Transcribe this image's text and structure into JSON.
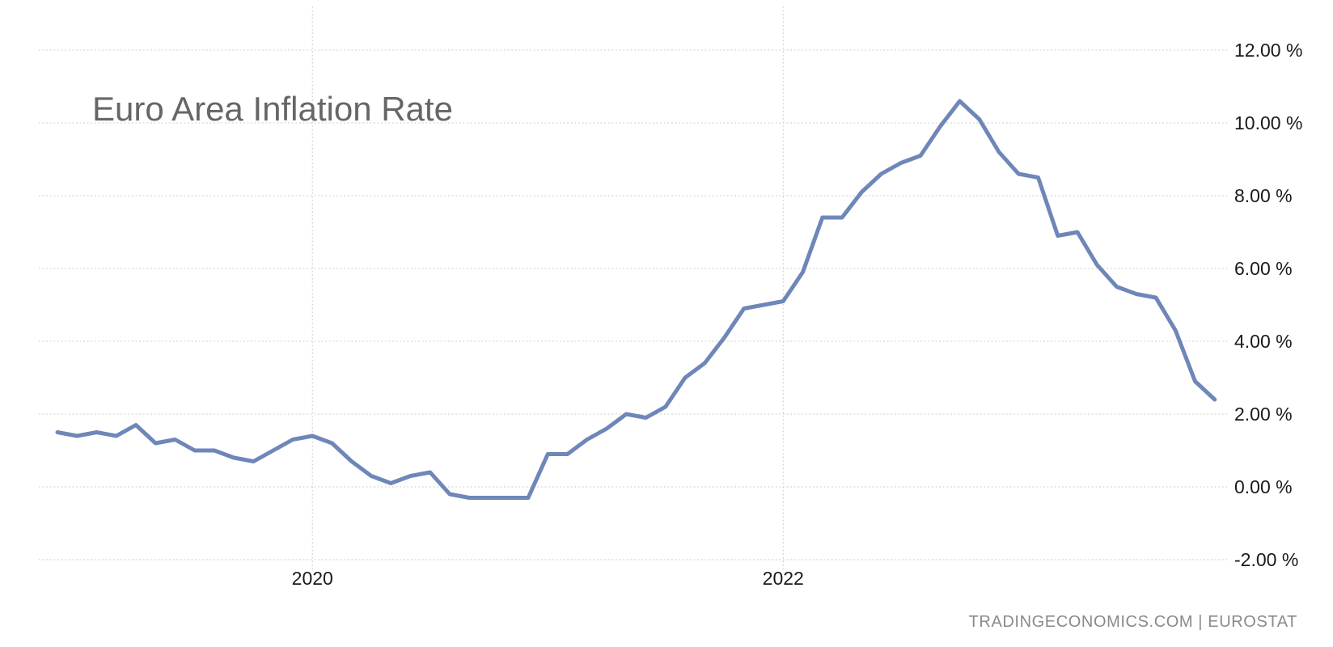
{
  "chart": {
    "title": {
      "text": "Euro Area Inflation Rate",
      "color": "#666666"
    },
    "attribution": {
      "text": "TRADINGECONOMICS.COM | EUROSTAT",
      "color": "#8a8a8a"
    },
    "colors": {
      "line": "#6e87b8",
      "grid": "#c9c9c9",
      "tick_label": "#1a1a1a",
      "background": "#ffffff"
    }
  },
  "chart_data": {
    "type": "line",
    "title": "Euro Area Inflation Rate",
    "unit": "%",
    "grid": "dotted",
    "legend": "none",
    "ylim": [
      -2.7,
      13.4
    ],
    "x": [
      "2018-12",
      "2019-01",
      "2019-02",
      "2019-03",
      "2019-04",
      "2019-05",
      "2019-06",
      "2019-07",
      "2019-08",
      "2019-09",
      "2019-10",
      "2019-11",
      "2019-12",
      "2020-01",
      "2020-02",
      "2020-03",
      "2020-04",
      "2020-05",
      "2020-06",
      "2020-07",
      "2020-08",
      "2020-09",
      "2020-10",
      "2020-11",
      "2020-12",
      "2021-01",
      "2021-02",
      "2021-03",
      "2021-04",
      "2021-05",
      "2021-06",
      "2021-07",
      "2021-08",
      "2021-09",
      "2021-10",
      "2021-11",
      "2021-12",
      "2022-01",
      "2022-02",
      "2022-03",
      "2022-04",
      "2022-05",
      "2022-06",
      "2022-07",
      "2022-08",
      "2022-09",
      "2022-10",
      "2022-11",
      "2022-12",
      "2023-01",
      "2023-02",
      "2023-03",
      "2023-04",
      "2023-05",
      "2023-06",
      "2023-07",
      "2023-08",
      "2023-09",
      "2023-10",
      "2023-11"
    ],
    "values": [
      1.5,
      1.4,
      1.5,
      1.4,
      1.7,
      1.2,
      1.3,
      1.0,
      1.0,
      0.8,
      0.7,
      1.0,
      1.3,
      1.4,
      1.2,
      0.7,
      0.3,
      0.1,
      0.3,
      0.4,
      -0.2,
      -0.3,
      -0.3,
      -0.3,
      -0.3,
      0.9,
      0.9,
      1.3,
      1.6,
      2.0,
      1.9,
      2.2,
      3.0,
      3.4,
      4.1,
      4.9,
      5.0,
      5.1,
      5.9,
      7.4,
      7.4,
      8.1,
      8.6,
      8.9,
      9.1,
      9.9,
      10.6,
      10.1,
      9.2,
      8.6,
      8.5,
      6.9,
      7.0,
      6.1,
      5.5,
      5.3,
      5.2,
      4.3,
      2.9,
      2.4
    ],
    "y_ticks": {
      "values": [
        12,
        10,
        8,
        6,
        4,
        2,
        0,
        -2
      ],
      "labels": [
        "12.00 %",
        "10.00 %",
        "8.00 %",
        "6.00 %",
        "4.00 %",
        "2.00 %",
        "0.00 %",
        "-2.00 %"
      ]
    },
    "x_ticks": [
      {
        "label": "2020",
        "month_index": 13
      },
      {
        "label": "2022",
        "month_index": 37
      }
    ]
  }
}
